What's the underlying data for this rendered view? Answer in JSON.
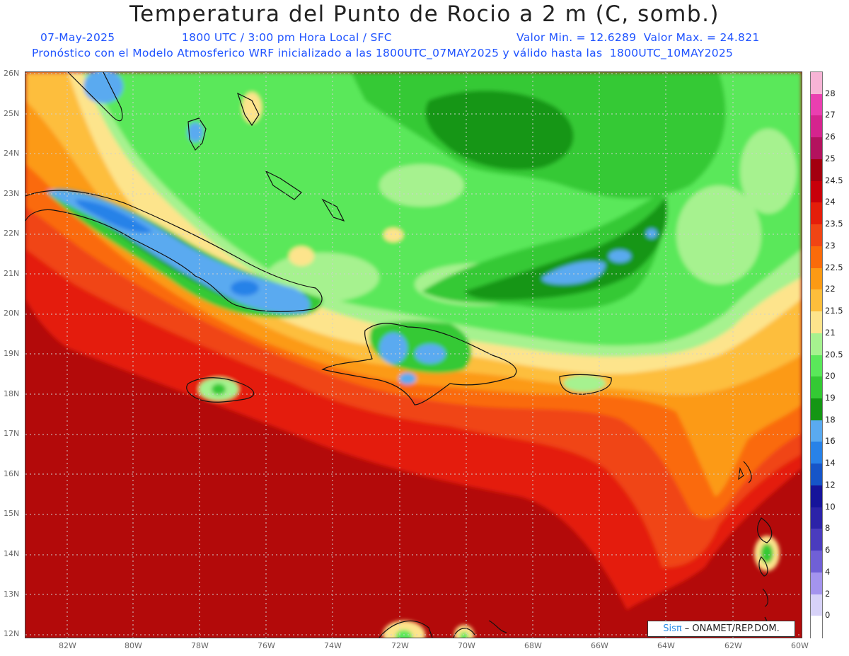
{
  "header": {
    "title": "Temperatura del Punto de Rocio a 2 m (C, somb.)",
    "date": "07-May-2025",
    "time": "1800 UTC / 3:00 pm Hora Local / SFC",
    "min_max": "Valor Min. = 12.6289  Valor Max. = 24.821",
    "description": "Pronóstico con el Modelo Atmosferico WRF inicializado a las 1800UTC_07MAY2025 y válido hasta las  1800UTC_10MAY2025"
  },
  "axes": {
    "lat_labels": [
      "26N",
      "25N",
      "24N",
      "23N",
      "22N",
      "21N",
      "20N",
      "19N",
      "18N",
      "17N",
      "16N",
      "15N",
      "14N",
      "13N",
      "12N"
    ],
    "lon_labels": [
      "82W",
      "80W",
      "78W",
      "76W",
      "74W",
      "72W",
      "70W",
      "68W",
      "66W",
      "64W",
      "62W",
      "60W"
    ]
  },
  "colorbar": {
    "labels": [
      "28",
      "27",
      "26",
      "25",
      "24.5",
      "24",
      "23.5",
      "23",
      "22.5",
      "22",
      "21.5",
      "21",
      "20.5",
      "20",
      "19",
      "18",
      "16",
      "14",
      "12",
      "10",
      "8",
      "6",
      "4",
      "2",
      "0"
    ],
    "colors": [
      "#f7b4d6",
      "#ea3fb0",
      "#d5248e",
      "#b3125e",
      "#a3000f",
      "#c8000a",
      "#e41e0a",
      "#f04514",
      "#fa6b0a",
      "#fc9a14",
      "#fdbe3c",
      "#fde48c",
      "#a6f28f",
      "#5ae85a",
      "#34c934",
      "#149614",
      "#5aaaf0",
      "#2882e8",
      "#1655c8",
      "#16149a",
      "#2c23a8",
      "#4a3cbe",
      "#7060d6",
      "#a494ee",
      "#d7d2f8",
      "#ffffff"
    ]
  },
  "map_colors": {
    "deep_red": "#b30a0a",
    "red": "#e41e0a",
    "orange_red": "#f04514",
    "orange": "#fa6b0a",
    "amber": "#fc9a14",
    "light_orange": "#fdbe3c",
    "pale_yellow": "#fde48c",
    "light_green": "#a6f28f",
    "green": "#5ae85a",
    "mid_green": "#34c934",
    "dark_green": "#149614",
    "light_blue": "#5aaaf0",
    "blue": "#2882e8"
  },
  "credit": {
    "brand": "Sisπ",
    "text": "– ONAMET/REP.DOM."
  }
}
